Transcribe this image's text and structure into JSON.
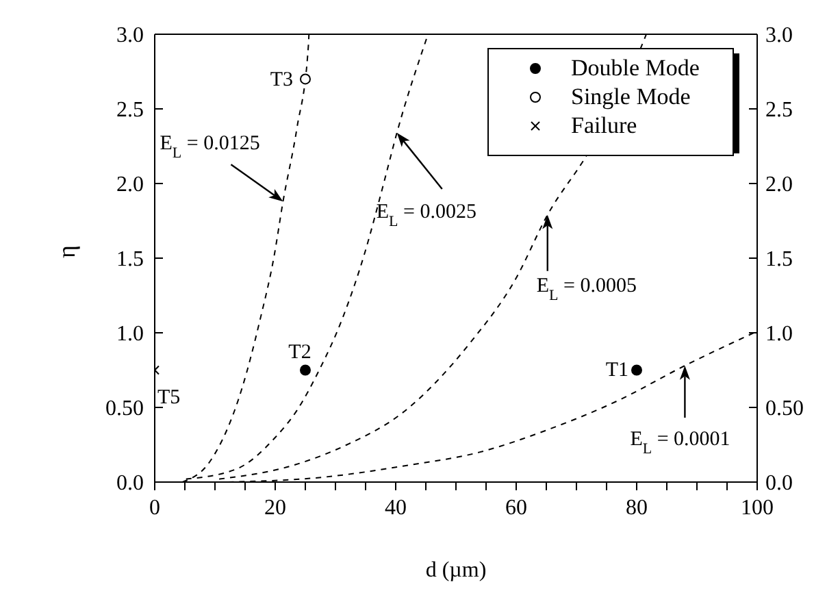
{
  "chart_data": {
    "type": "line",
    "xlabel": "d (µm)",
    "ylabel": "η",
    "xlim": [
      0,
      100
    ],
    "xticks": [
      0,
      {
        "value": 5,
        "label": null
      },
      {
        "value": 10,
        "label": null
      },
      {
        "value": 15,
        "label": null
      },
      20,
      {
        "value": 25,
        "label": null
      },
      {
        "value": 30,
        "label": null
      },
      {
        "value": 35,
        "label": null
      },
      40,
      {
        "value": 45,
        "label": null
      },
      {
        "value": 50,
        "label": null
      },
      {
        "value": 55,
        "label": null
      },
      60,
      {
        "value": 65,
        "label": null
      },
      {
        "value": 70,
        "label": null
      },
      {
        "value": 75,
        "label": null
      },
      80,
      {
        "value": 85,
        "label": null
      },
      {
        "value": 90,
        "label": null
      },
      {
        "value": 95,
        "label": null
      },
      100
    ],
    "ylim": [
      0,
      3
    ],
    "yticks": [
      {
        "value": 0,
        "label": "0.0"
      },
      {
        "value": 0.5,
        "label": "0.50"
      },
      {
        "value": 1,
        "label": "1.0"
      },
      1.5,
      {
        "value": 2,
        "label": "2.0"
      },
      2.5,
      {
        "value": 3,
        "label": "3.0"
      }
    ],
    "y2lim": [
      0,
      3
    ],
    "y2ticks": [
      {
        "value": 0,
        "label": "0.0"
      },
      {
        "value": 0.5,
        "label": "0.50"
      },
      {
        "value": 1,
        "label": "1.0"
      },
      1.5,
      {
        "value": 2,
        "label": "2.0"
      },
      2.5,
      {
        "value": 3,
        "label": "3.0"
      }
    ],
    "legend": "top right",
    "series": [
      {
        "color": "#000000",
        "line_style": "dashed",
        "marker": "none",
        "x": [
          4.6,
          9.2,
          14.5,
          17.5,
          19.8,
          21.3,
          23.6,
          25.5,
          25.6
        ],
        "values": [
          0,
          0.14,
          0.63,
          1.09,
          1.51,
          1.88,
          2.37,
          2.92,
          3.0
        ]
      },
      {
        "color": "#000000",
        "line_style": "dashed",
        "marker": "none",
        "x": [
          5.2,
          13.7,
          19.8,
          23.6,
          27.3,
          31.1,
          34.9,
          38,
          40.2,
          45.2
        ],
        "values": [
          0.02,
          0.09,
          0.29,
          0.48,
          0.75,
          1.09,
          1.54,
          2.0,
          2.34,
          2.98
        ]
      },
      {
        "color": "#000000",
        "line_style": "dashed",
        "marker": "none",
        "x": [
          10.7,
          22.8,
          31.9,
          41,
          52.3,
          59.9,
          65.2,
          72,
          81.1,
          81.6
        ],
        "values": [
          0.02,
          0.11,
          0.25,
          0.46,
          0.93,
          1.36,
          1.79,
          2.21,
          2.95,
          3.0
        ]
      },
      {
        "color": "#000000",
        "line_style": "dashed",
        "marker": "none",
        "x": [
          12.2,
          27.3,
          41.7,
          53.9,
          65.2,
          76.6,
          88,
          100
        ],
        "values": [
          0,
          0.03,
          0.11,
          0.2,
          0.35,
          0.54,
          0.78,
          1.01
        ]
      },
      {
        "type": "scatter",
        "name": "Double Mode",
        "color": "#000000",
        "marker": "circle",
        "x": [
          25,
          80
        ],
        "values": [
          0.75,
          0.75
        ]
      },
      {
        "type": "scatter",
        "name": "Single Mode",
        "color": "#ffffff",
        "marker": "circle",
        "x": [
          25
        ],
        "values": [
          2.7
        ]
      },
      {
        "type": "scatter",
        "name": "Failure",
        "color": "#000000",
        "marker": "cross",
        "x": [
          0
        ],
        "values": [
          0.75
        ]
      }
    ],
    "annotations": [
      {
        "text": "E$_{L}$ = 0.0125",
        "x": 21.3,
        "y": 1.88
      },
      {
        "text": "E$_{L}$ = 0.0025",
        "x": 40.2,
        "y": 2.34
      },
      {
        "text": "E$_{L}$ = 0.0005",
        "x": 65.2,
        "y": 1.79
      },
      {
        "text": "E$_{L}$ = 0.0001",
        "x": 88,
        "y": 0.78
      },
      {
        "text": "T3",
        "x": 25,
        "y": 2.7
      },
      {
        "text": "T2",
        "x": 25,
        "y": 0.75
      },
      {
        "text": "T1",
        "x": 80,
        "y": 0.75
      },
      {
        "text": "T5",
        "x": 0,
        "y": 0.75
      }
    ]
  }
}
